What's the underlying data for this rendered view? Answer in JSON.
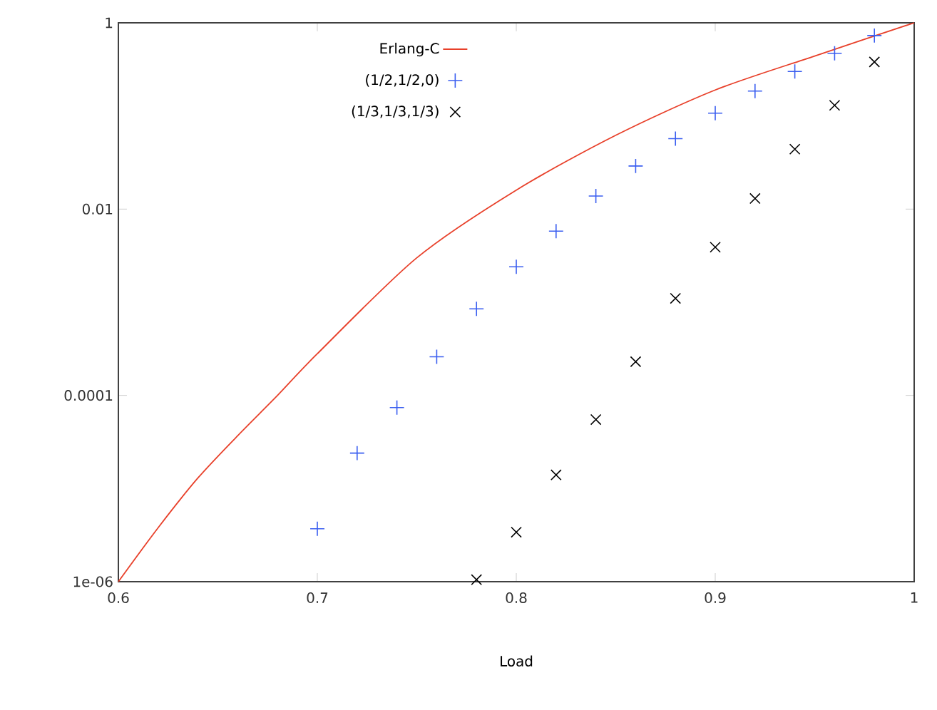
{
  "chart_data": {
    "type": "scatter",
    "xlabel": "Load",
    "log": "y",
    "grid": false,
    "legend": "top left",
    "xlim": [
      0.6,
      1
    ],
    "ylim": [
      1e-06,
      1
    ],
    "xticks": [
      0.6,
      0.7,
      0.8,
      0.9,
      1
    ],
    "yticks": [
      {
        "value": 1e-06,
        "label": "1e-06"
      },
      0.0001,
      0.01,
      1
    ],
    "series": [
      {
        "name": "Erlang-C",
        "type": "line",
        "color": "#e8402a",
        "marker": "none",
        "line_style": "solid",
        "x": [
          0.6,
          0.62,
          0.64,
          0.66,
          0.68,
          0.7,
          0.75,
          0.8,
          0.85,
          0.9,
          0.95,
          1.0
        ],
        "values": [
          1e-06,
          3.8e-06,
          1.3e-05,
          3.7e-05,
          0.0001,
          0.00028,
          0.003,
          0.016,
          0.062,
          0.19,
          0.44,
          1
        ]
      },
      {
        "name": "(1/2,1/2,0)",
        "color": "#3a5ef0",
        "marker": "plus",
        "x": [
          0.7,
          0.72,
          0.74,
          0.76,
          0.78,
          0.8,
          0.82,
          0.84,
          0.86,
          0.88,
          0.9,
          0.92,
          0.94,
          0.96,
          0.98
        ],
        "values": [
          3.7e-06,
          2.4e-05,
          7.4e-05,
          0.00026,
          0.00085,
          0.0024,
          0.0058,
          0.0138,
          0.029,
          0.057,
          0.107,
          0.185,
          0.3,
          0.47,
          0.73
        ]
      },
      {
        "name": "(1/3,1/3,1/3)",
        "color": "#000000",
        "marker": "cross",
        "x": [
          0.78,
          0.8,
          0.82,
          0.84,
          0.86,
          0.88,
          0.9,
          0.92,
          0.94,
          0.96,
          0.98
        ],
        "values": [
          1.05e-06,
          3.4e-06,
          1.4e-05,
          5.5e-05,
          0.00023,
          0.0011,
          0.0039,
          0.013,
          0.044,
          0.13,
          0.38
        ]
      }
    ]
  }
}
